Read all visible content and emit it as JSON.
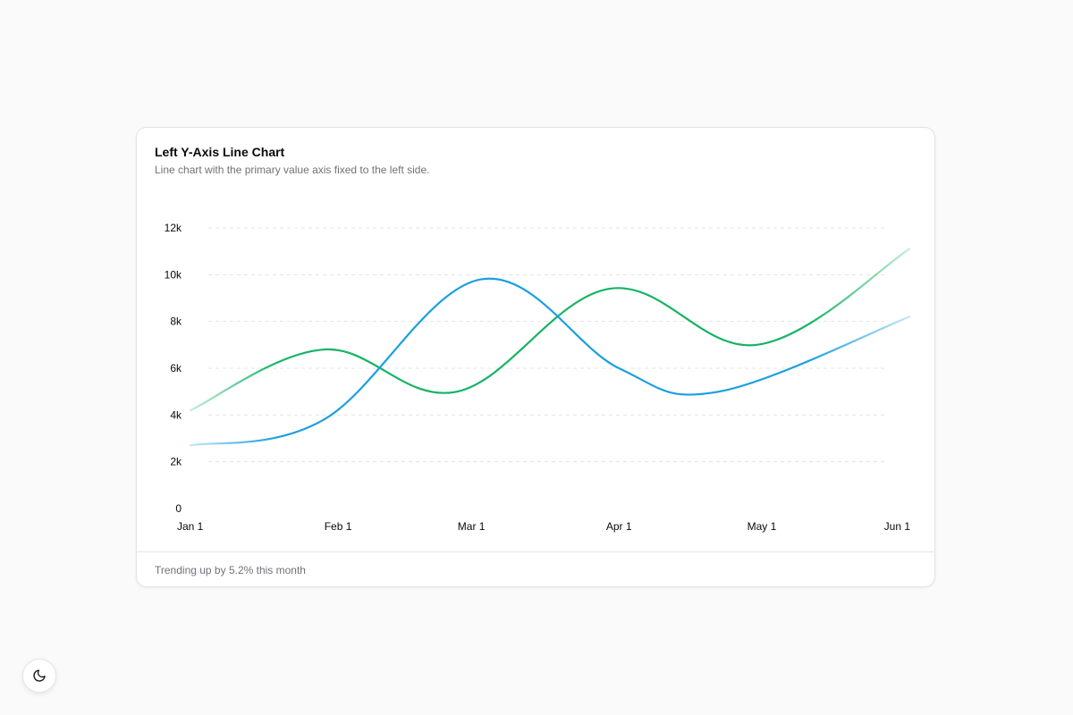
{
  "card": {
    "title": "Left Y-Axis Line Chart",
    "description": "Line chart with the primary value axis fixed to the left side.",
    "footer": "Trending up by 5.2% this month"
  },
  "theme_toggle": {
    "icon": "moon-icon"
  },
  "colors": {
    "green": "#16b364",
    "blue": "#1c9fe0",
    "grid": "#e4e4e7"
  },
  "chart_data": {
    "type": "line",
    "title": "",
    "xlabel": "",
    "ylabel": "",
    "x_ticks": [
      "Jan 1",
      "Feb 1",
      "Mar 1",
      "Apr 1",
      "May 1",
      "Jun 1"
    ],
    "y_ticks": [
      "0",
      "2k",
      "4k",
      "6k",
      "8k",
      "10k",
      "12k"
    ],
    "ylim": [
      0,
      12000
    ],
    "grid": true,
    "curve": "smooth",
    "series": [
      {
        "color": "#16b364",
        "x": [
          "Jan 1",
          "Feb 1",
          "Mar 1",
          "Apr 1",
          "May 1",
          "Jun 1"
        ],
        "points": [
          [
            "Jan 1",
            4200
          ],
          [
            "Jan 29",
            6800
          ],
          [
            "Feb 26",
            5000
          ],
          [
            "Mar 30",
            9400
          ],
          [
            "Apr 30",
            7000
          ],
          [
            "Jun 1",
            11100
          ]
        ]
      },
      {
        "color": "#1c9fe0",
        "points": [
          [
            "Jan 1",
            2700
          ],
          [
            "Jan 29",
            3800
          ],
          [
            "Mar 3",
            9800
          ],
          [
            "Apr 1",
            6000
          ],
          [
            "Apr 22",
            5000
          ],
          [
            "Jun 1",
            8200
          ]
        ]
      }
    ]
  }
}
